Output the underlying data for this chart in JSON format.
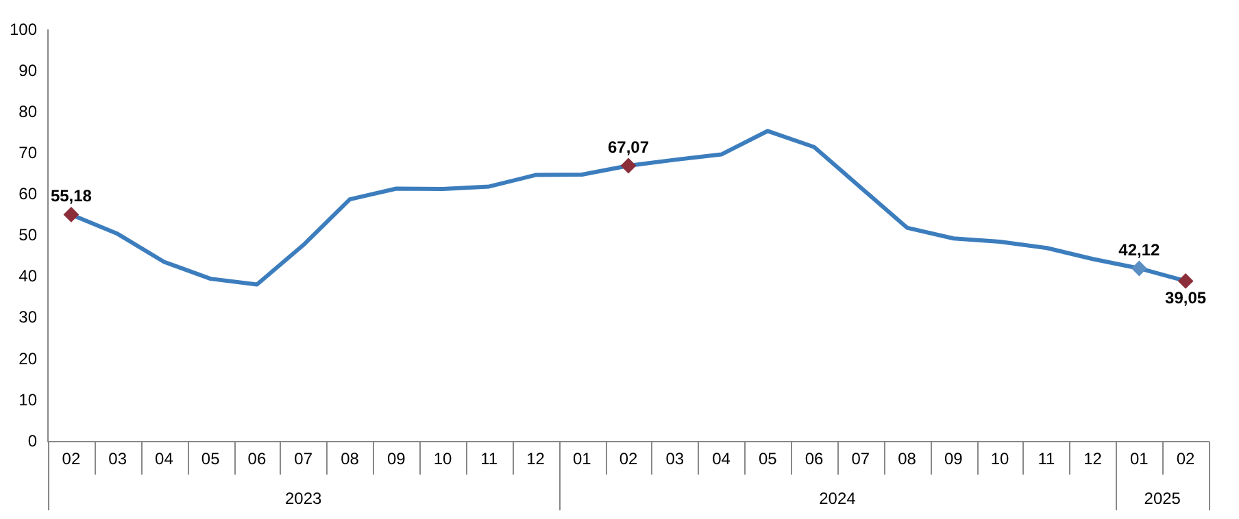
{
  "chart_data": {
    "type": "line",
    "categories": [
      "02",
      "03",
      "04",
      "05",
      "06",
      "07",
      "08",
      "09",
      "10",
      "11",
      "12",
      "01",
      "02",
      "03",
      "04",
      "05",
      "06",
      "07",
      "08",
      "09",
      "10",
      "11",
      "12",
      "01",
      "02"
    ],
    "series": [
      {
        "color": "#3c7dbd",
        "values": [
          55.18,
          50.5,
          43.7,
          39.6,
          38.2,
          47.8,
          58.9,
          61.5,
          61.4,
          62.0,
          64.8,
          64.9,
          67.07,
          68.5,
          69.8,
          75.5,
          71.6,
          61.8,
          52.0,
          49.4,
          48.6,
          47.1,
          44.4,
          42.12,
          39.05
        ],
        "colors": [
          "#8b2e3a",
          null,
          null,
          null,
          null,
          null,
          null,
          null,
          null,
          null,
          null,
          null,
          "#8b2e3a",
          null,
          null,
          null,
          null,
          null,
          null,
          null,
          null,
          null,
          null,
          "#5b8fc4",
          "#8b2e3a"
        ],
        "value_labels": [
          "55,18",
          null,
          null,
          null,
          null,
          null,
          null,
          null,
          null,
          null,
          null,
          null,
          "67,07",
          null,
          null,
          null,
          null,
          null,
          null,
          null,
          null,
          null,
          null,
          "42,12",
          "39,05"
        ]
      }
    ],
    "annotations": [
      "2023",
      "2024",
      "2025"
    ],
    "ylim": [
      0,
      100
    ],
    "yticks": [
      0,
      10,
      20,
      30,
      40,
      50,
      60,
      70,
      80,
      90,
      100
    ],
    "grid": false,
    "legend": false,
    "line_style": "solid"
  }
}
